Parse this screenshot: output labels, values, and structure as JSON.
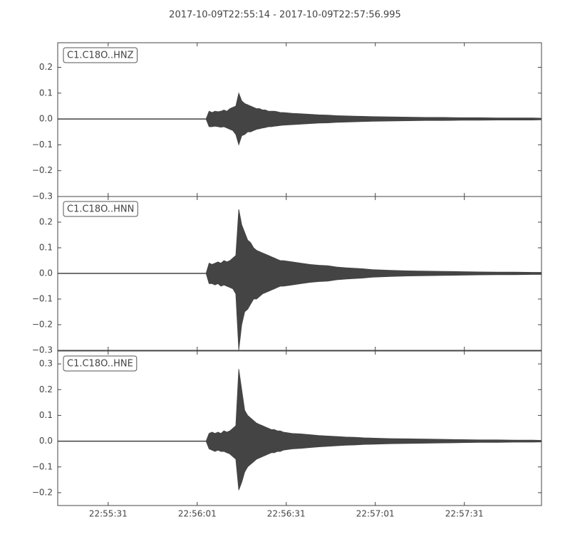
{
  "title": "2017-10-09T22:55:14  -  2017-10-09T22:57:56.995",
  "chart_data": [
    {
      "type": "waveform",
      "label": "C1.C18O..HNZ",
      "color": "#444444",
      "xlim": [
        "22:55:14",
        "22:57:56.995"
      ],
      "x": [
        "22:55:14",
        "22:55:40",
        "22:56:04",
        "22:56:05",
        "22:56:06",
        "22:56:07",
        "22:56:08",
        "22:56:09",
        "22:56:10",
        "22:56:11",
        "22:56:12",
        "22:56:13",
        "22:56:14",
        "22:56:15",
        "22:56:16",
        "22:56:17",
        "22:56:18",
        "22:56:19",
        "22:56:20",
        "22:56:21",
        "22:56:22",
        "22:56:23",
        "22:56:24",
        "22:56:25",
        "22:56:26",
        "22:56:27",
        "22:56:28",
        "22:56:29",
        "22:56:30",
        "22:56:33",
        "22:56:36",
        "22:56:39",
        "22:56:42",
        "22:56:45",
        "22:56:48",
        "22:56:51",
        "22:56:54",
        "22:56:57",
        "22:57:00",
        "22:57:06",
        "22:57:12",
        "22:57:18",
        "22:57:24",
        "22:57:30",
        "22:57:36",
        "22:57:42",
        "22:57:48",
        "22:57:54",
        "22:57:56.995"
      ],
      "series": [
        {
          "color": "#444444",
          "values": [
            0.001,
            0.001,
            0.001,
            0.03,
            0.025,
            0.03,
            0.028,
            0.03,
            0.035,
            0.03,
            0.04,
            0.045,
            0.05,
            0.1,
            0.07,
            0.06,
            0.055,
            0.05,
            0.045,
            0.04,
            0.04,
            0.035,
            0.035,
            0.03,
            0.03,
            0.03,
            0.028,
            0.025,
            0.025,
            0.022,
            0.02,
            0.018,
            0.016,
            0.015,
            0.013,
            0.012,
            0.011,
            0.01,
            0.009,
            0.008,
            0.007,
            0.006,
            0.006,
            0.005,
            0.005,
            0.004,
            0.004,
            0.004,
            0.003
          ]
        },
        {
          "color": "#444444",
          "values": [
            -0.001,
            -0.001,
            -0.001,
            -0.03,
            -0.03,
            -0.028,
            -0.03,
            -0.032,
            -0.03,
            -0.035,
            -0.04,
            -0.045,
            -0.06,
            -0.1,
            -0.065,
            -0.06,
            -0.05,
            -0.05,
            -0.045,
            -0.04,
            -0.038,
            -0.035,
            -0.033,
            -0.03,
            -0.03,
            -0.028,
            -0.027,
            -0.025,
            -0.024,
            -0.022,
            -0.02,
            -0.018,
            -0.016,
            -0.015,
            -0.013,
            -0.012,
            -0.011,
            -0.01,
            -0.009,
            -0.008,
            -0.007,
            -0.006,
            -0.006,
            -0.005,
            -0.005,
            -0.004,
            -0.004,
            -0.004,
            -0.003
          ]
        }
      ],
      "ylim": [
        -0.3,
        0.295
      ],
      "yticks": [
        {
          "value": -0.3,
          "label": "−0.3"
        },
        {
          "value": -0.2,
          "label": "−0.2"
        },
        {
          "value": -0.1,
          "label": "−0.1"
        },
        {
          "value": 0,
          "label": "0.0"
        },
        {
          "value": 0.1,
          "label": "0.1"
        },
        {
          "value": 0.2,
          "label": "0.2"
        }
      ]
    },
    {
      "type": "waveform",
      "label": "C1.C18O..HNN",
      "color": "#444444",
      "xlim": [
        "22:55:14",
        "22:57:56.995"
      ],
      "x": [
        "22:55:14",
        "22:55:40",
        "22:56:04",
        "22:56:05",
        "22:56:06",
        "22:56:07",
        "22:56:08",
        "22:56:09",
        "22:56:10",
        "22:56:11",
        "22:56:12",
        "22:56:13",
        "22:56:14",
        "22:56:15",
        "22:56:16",
        "22:56:17",
        "22:56:18",
        "22:56:19",
        "22:56:20",
        "22:56:21",
        "22:56:22",
        "22:56:23",
        "22:56:24",
        "22:56:25",
        "22:56:26",
        "22:56:27",
        "22:56:28",
        "22:56:29",
        "22:56:30",
        "22:56:33",
        "22:56:36",
        "22:56:39",
        "22:56:42",
        "22:56:45",
        "22:56:48",
        "22:56:51",
        "22:56:54",
        "22:56:57",
        "22:57:00",
        "22:57:06",
        "22:57:12",
        "22:57:18",
        "22:57:24",
        "22:57:30",
        "22:57:36",
        "22:57:42",
        "22:57:48",
        "22:57:54",
        "22:57:56.995"
      ],
      "series": [
        {
          "color": "#444444",
          "values": [
            0.001,
            0.001,
            0.001,
            0.04,
            0.035,
            0.04,
            0.045,
            0.04,
            0.05,
            0.045,
            0.05,
            0.06,
            0.07,
            0.25,
            0.19,
            0.16,
            0.13,
            0.12,
            0.1,
            0.09,
            0.085,
            0.08,
            0.075,
            0.07,
            0.065,
            0.06,
            0.055,
            0.05,
            0.05,
            0.045,
            0.04,
            0.035,
            0.032,
            0.03,
            0.025,
            0.022,
            0.02,
            0.018,
            0.015,
            0.012,
            0.01,
            0.009,
            0.008,
            0.007,
            0.006,
            0.005,
            0.005,
            0.004,
            0.004
          ]
        },
        {
          "color": "#444444",
          "values": [
            -0.001,
            -0.001,
            -0.001,
            -0.04,
            -0.04,
            -0.045,
            -0.04,
            -0.05,
            -0.045,
            -0.05,
            -0.055,
            -0.06,
            -0.08,
            -0.3,
            -0.2,
            -0.15,
            -0.14,
            -0.12,
            -0.1,
            -0.1,
            -0.09,
            -0.08,
            -0.075,
            -0.07,
            -0.065,
            -0.06,
            -0.055,
            -0.05,
            -0.05,
            -0.045,
            -0.04,
            -0.035,
            -0.032,
            -0.03,
            -0.025,
            -0.022,
            -0.02,
            -0.018,
            -0.015,
            -0.012,
            -0.01,
            -0.009,
            -0.008,
            -0.007,
            -0.006,
            -0.005,
            -0.005,
            -0.004,
            -0.004
          ]
        }
      ],
      "ylim": [
        -0.3,
        0.3
      ],
      "yticks": [
        {
          "value": -0.3,
          "label": "−0.3"
        },
        {
          "value": -0.2,
          "label": "−0.2"
        },
        {
          "value": -0.1,
          "label": "−0.1"
        },
        {
          "value": 0,
          "label": "0.0"
        },
        {
          "value": 0.1,
          "label": "0.1"
        },
        {
          "value": 0.2,
          "label": "0.2"
        }
      ]
    },
    {
      "type": "waveform",
      "label": "C1.C18O..HNE",
      "color": "#444444",
      "xlim": [
        "22:55:14",
        "22:57:56.995"
      ],
      "xticks": [
        "22:55:31",
        "22:56:01",
        "22:56:31",
        "22:57:01",
        "22:57:31"
      ],
      "x": [
        "22:55:14",
        "22:55:40",
        "22:56:04",
        "22:56:05",
        "22:56:06",
        "22:56:07",
        "22:56:08",
        "22:56:09",
        "22:56:10",
        "22:56:11",
        "22:56:12",
        "22:56:13",
        "22:56:14",
        "22:56:15",
        "22:56:16",
        "22:56:17",
        "22:56:18",
        "22:56:19",
        "22:56:20",
        "22:56:21",
        "22:56:22",
        "22:56:23",
        "22:56:24",
        "22:56:25",
        "22:56:26",
        "22:56:27",
        "22:56:28",
        "22:56:29",
        "22:56:30",
        "22:56:33",
        "22:56:36",
        "22:56:39",
        "22:56:42",
        "22:56:45",
        "22:56:48",
        "22:56:51",
        "22:56:54",
        "22:56:57",
        "22:57:00",
        "22:57:06",
        "22:57:12",
        "22:57:18",
        "22:57:24",
        "22:57:30",
        "22:57:36",
        "22:57:42",
        "22:57:48",
        "22:57:54",
        "22:57:56.995"
      ],
      "series": [
        {
          "color": "#444444",
          "values": [
            0.001,
            0.001,
            0.001,
            0.03,
            0.035,
            0.03,
            0.035,
            0.03,
            0.04,
            0.035,
            0.04,
            0.05,
            0.06,
            0.28,
            0.2,
            0.12,
            0.1,
            0.09,
            0.08,
            0.07,
            0.065,
            0.06,
            0.055,
            0.05,
            0.045,
            0.045,
            0.04,
            0.04,
            0.035,
            0.03,
            0.028,
            0.025,
            0.022,
            0.02,
            0.018,
            0.016,
            0.015,
            0.013,
            0.012,
            0.01,
            0.009,
            0.008,
            0.007,
            0.006,
            0.005,
            0.005,
            0.004,
            0.004,
            0.003
          ]
        },
        {
          "color": "#444444",
          "values": [
            -0.001,
            -0.001,
            -0.001,
            -0.03,
            -0.035,
            -0.04,
            -0.035,
            -0.04,
            -0.04,
            -0.045,
            -0.05,
            -0.06,
            -0.07,
            -0.19,
            -0.16,
            -0.12,
            -0.1,
            -0.09,
            -0.08,
            -0.07,
            -0.065,
            -0.06,
            -0.055,
            -0.05,
            -0.045,
            -0.045,
            -0.04,
            -0.04,
            -0.035,
            -0.03,
            -0.028,
            -0.025,
            -0.022,
            -0.02,
            -0.018,
            -0.016,
            -0.015,
            -0.013,
            -0.012,
            -0.01,
            -0.009,
            -0.008,
            -0.007,
            -0.006,
            -0.005,
            -0.005,
            -0.004,
            -0.004,
            -0.003
          ]
        }
      ],
      "ylim": [
        -0.25,
        0.35
      ],
      "yticks": [
        {
          "value": -0.2,
          "label": "−0.2"
        },
        {
          "value": -0.1,
          "label": "−0.1"
        },
        {
          "value": 0,
          "label": "0.0"
        },
        {
          "value": 0.1,
          "label": "0.1"
        },
        {
          "value": 0.2,
          "label": "0.2"
        },
        {
          "value": 0.3,
          "label": "0.3"
        }
      ]
    }
  ]
}
